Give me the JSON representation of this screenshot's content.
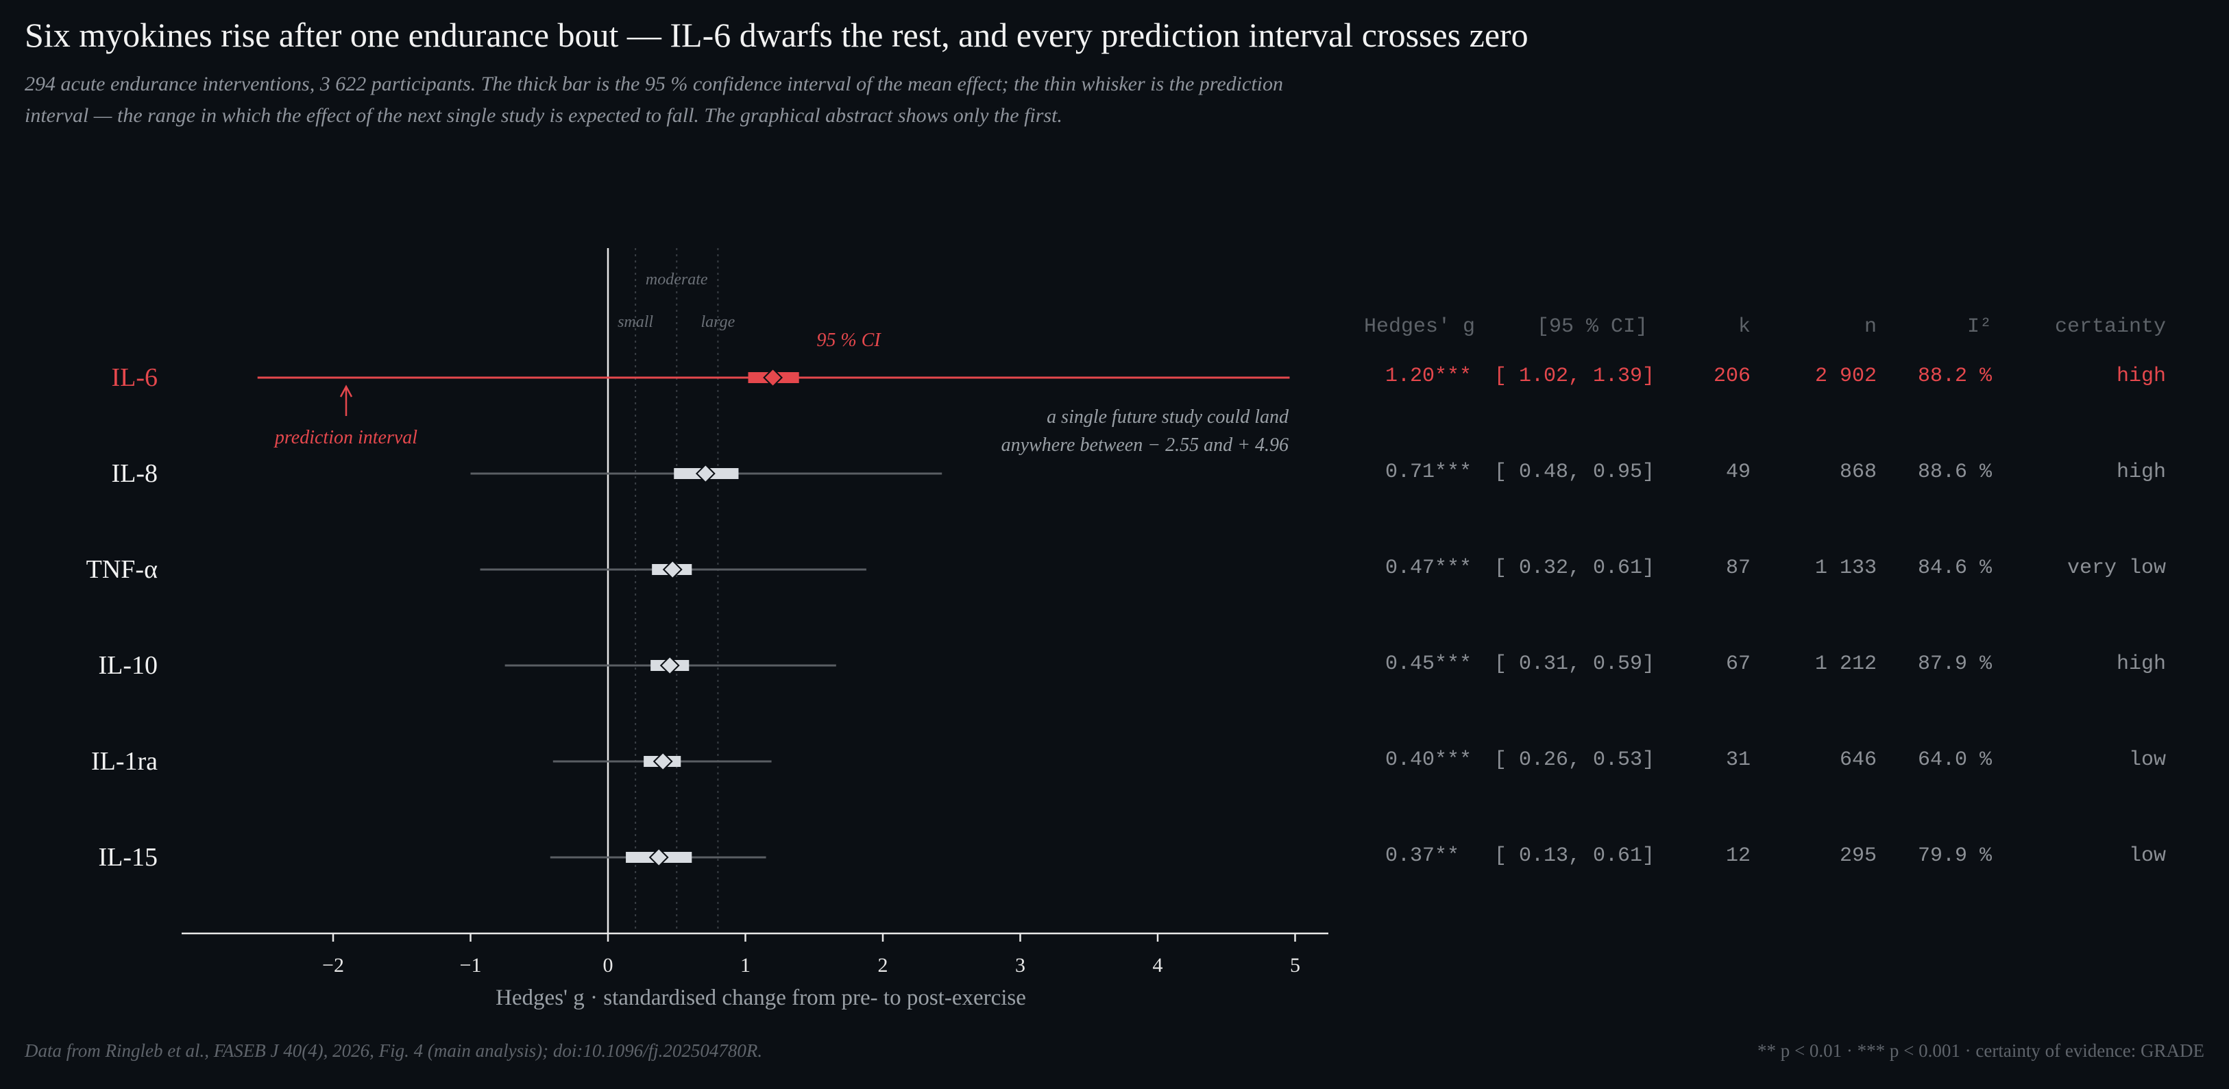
{
  "title": "Six myokines rise after one endurance bout — IL-6 dwarfs the rest, and every prediction interval crosses zero",
  "subtitle": "294 acute endurance interventions, 3 622 participants. The thick bar is the 95 % confidence interval of the mean effect; the thin whisker is the prediction interval — the range in which the effect of the next single study is expected to fall. The graphical abstract shows only the first.",
  "colors": {
    "highlight": "#e5484d",
    "marker": "#d9dde2",
    "whisker": "#5a5e63",
    "axis": "#e8e8e8",
    "background": "#0b0f14"
  },
  "chart_data": {
    "type": "forest",
    "xlabel": "Hedges' g · standardised change from pre- to post-exercise",
    "xlim": [
      -3.05,
      5.25
    ],
    "xticks": [
      -2,
      -1,
      0,
      1,
      2,
      3,
      4,
      5
    ],
    "xtick_labels": [
      "−2",
      "−1",
      "0",
      "1",
      "2",
      "3",
      "4",
      "5"
    ],
    "reference_lines": [
      {
        "label": "small",
        "x": 0.2
      },
      {
        "label": "moderate",
        "x": 0.5
      },
      {
        "label": "large",
        "x": 0.8
      }
    ],
    "rows": [
      {
        "label": "IL-6",
        "g": 1.2,
        "ci": [
          1.02,
          1.39
        ],
        "pi": [
          -2.55,
          4.96
        ],
        "highlight": true
      },
      {
        "label": "IL-8",
        "g": 0.71,
        "ci": [
          0.48,
          0.95
        ],
        "pi": [
          -1.0,
          2.43
        ],
        "highlight": false
      },
      {
        "label": "TNF-α",
        "g": 0.47,
        "ci": [
          0.32,
          0.61
        ],
        "pi": [
          -0.93,
          1.88
        ],
        "highlight": false
      },
      {
        "label": "IL-10",
        "g": 0.45,
        "ci": [
          0.31,
          0.59
        ],
        "pi": [
          -0.75,
          1.66
        ],
        "highlight": false
      },
      {
        "label": "IL-1ra",
        "g": 0.4,
        "ci": [
          0.26,
          0.53
        ],
        "pi": [
          -0.4,
          1.19
        ],
        "highlight": false
      },
      {
        "label": "IL-15",
        "g": 0.37,
        "ci": [
          0.13,
          0.61
        ],
        "pi": [
          -0.42,
          1.15
        ],
        "highlight": false
      }
    ],
    "annotations": {
      "ci_label": "95 % CI",
      "pi_label": "prediction interval",
      "future_line1": "a single future study could land",
      "future_line2": "anywhere between − 2.55 and + 4.96"
    }
  },
  "table": {
    "headers": {
      "g": "Hedges' g",
      "ci": "[95 % CI]",
      "k": "k",
      "n": "n",
      "i2": "I²",
      "certainty": "certainty"
    },
    "rows": [
      {
        "g": "1.20***",
        "ci": "[ 1.02, 1.39]",
        "k": "206",
        "n": "2 902",
        "i2": "88.2 %",
        "certainty": "high"
      },
      {
        "g": "0.71***",
        "ci": "[ 0.48, 0.95]",
        "k": "49",
        "n": "868",
        "i2": "88.6 %",
        "certainty": "high"
      },
      {
        "g": "0.47***",
        "ci": "[ 0.32, 0.61]",
        "k": "87",
        "n": "1 133",
        "i2": "84.6 %",
        "certainty": "very low"
      },
      {
        "g": "0.45***",
        "ci": "[ 0.31, 0.59]",
        "k": "67",
        "n": "1 212",
        "i2": "87.9 %",
        "certainty": "high"
      },
      {
        "g": "0.40***",
        "ci": "[ 0.26, 0.53]",
        "k": "31",
        "n": "646",
        "i2": "64.0 %",
        "certainty": "low"
      },
      {
        "g": "0.37** ",
        "ci": "[ 0.13, 0.61]",
        "k": "12",
        "n": "295",
        "i2": "79.9 %",
        "certainty": "low"
      }
    ]
  },
  "footer": {
    "source": "Data from Ringleb et al., FASEB J 40(4), 2026, Fig. 4 (main analysis); doi:10.1096/fj.202504780R.",
    "legend": "** p < 0.01 · *** p < 0.001 · certainty of evidence: GRADE"
  }
}
